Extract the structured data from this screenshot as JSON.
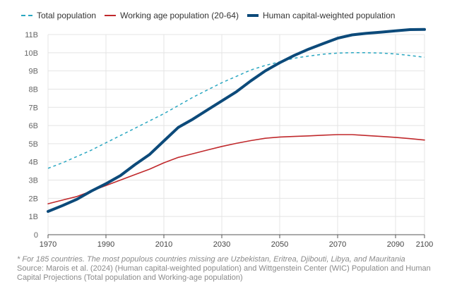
{
  "chart_data": {
    "type": "line",
    "x": [
      1970,
      1975,
      1980,
      1985,
      1990,
      1995,
      2000,
      2005,
      2010,
      2015,
      2020,
      2025,
      2030,
      2035,
      2040,
      2045,
      2050,
      2055,
      2060,
      2065,
      2070,
      2075,
      2080,
      2085,
      2090,
      2095,
      2100
    ],
    "series": [
      {
        "name": "Total population",
        "color": "#2aa7c1",
        "dash": true,
        "width": 1.5,
        "values": [
          3.65,
          3.95,
          4.3,
          4.65,
          5.05,
          5.45,
          5.85,
          6.25,
          6.65,
          7.1,
          7.55,
          7.95,
          8.35,
          8.7,
          9.05,
          9.3,
          9.5,
          9.7,
          9.82,
          9.92,
          9.98,
          10.0,
          10.0,
          9.98,
          9.93,
          9.85,
          9.75
        ]
      },
      {
        "name": "Working age population (20-64)",
        "color": "#c0292c",
        "dash": false,
        "width": 1.6,
        "values": [
          1.7,
          1.9,
          2.1,
          2.4,
          2.7,
          3.0,
          3.3,
          3.6,
          3.95,
          4.25,
          4.45,
          4.65,
          4.85,
          5.02,
          5.17,
          5.3,
          5.37,
          5.4,
          5.43,
          5.47,
          5.5,
          5.5,
          5.45,
          5.4,
          5.35,
          5.28,
          5.2
        ]
      },
      {
        "name": "Human capital-weighted population",
        "color": "#0c4a7a",
        "dash": false,
        "width": 4,
        "values": [
          1.28,
          1.6,
          1.95,
          2.4,
          2.8,
          3.25,
          3.85,
          4.4,
          5.15,
          5.9,
          6.35,
          6.85,
          7.35,
          7.85,
          8.45,
          9.0,
          9.45,
          9.85,
          10.2,
          10.5,
          10.8,
          10.98,
          11.07,
          11.13,
          11.2,
          11.27,
          11.28
        ]
      }
    ],
    "ylim": [
      0,
      11
    ],
    "xlim": [
      1970,
      2100
    ],
    "yticks": [
      "0",
      "1B",
      "2B",
      "3B",
      "4B",
      "5B",
      "6B",
      "7B",
      "8B",
      "9B",
      "10B",
      "11B"
    ],
    "xticks": [
      {
        "value": 1970,
        "label": "1970"
      },
      {
        "value": 1990,
        "label": "1990"
      },
      {
        "value": 2010,
        "label": "2010"
      },
      {
        "value": 2030,
        "label": "2030"
      },
      {
        "value": 2050,
        "label": "2050"
      },
      {
        "value": 2070,
        "label": "2070"
      },
      {
        "value": 2090,
        "label": "2090"
      },
      {
        "value": 2100,
        "label": "2100"
      }
    ],
    "grid": true,
    "legend_position": "top-left"
  },
  "note": "* For 185 countries. The most populous countries missing are Uzbekistan, Eritrea, Djibouti, Libya, and Mauritania",
  "source": "Source: Marois et al. (2024) (Human capital-weighted population) and Wittgenstein Center (WIC) Population and Human Capital Projections (Total population and Working-age population)"
}
